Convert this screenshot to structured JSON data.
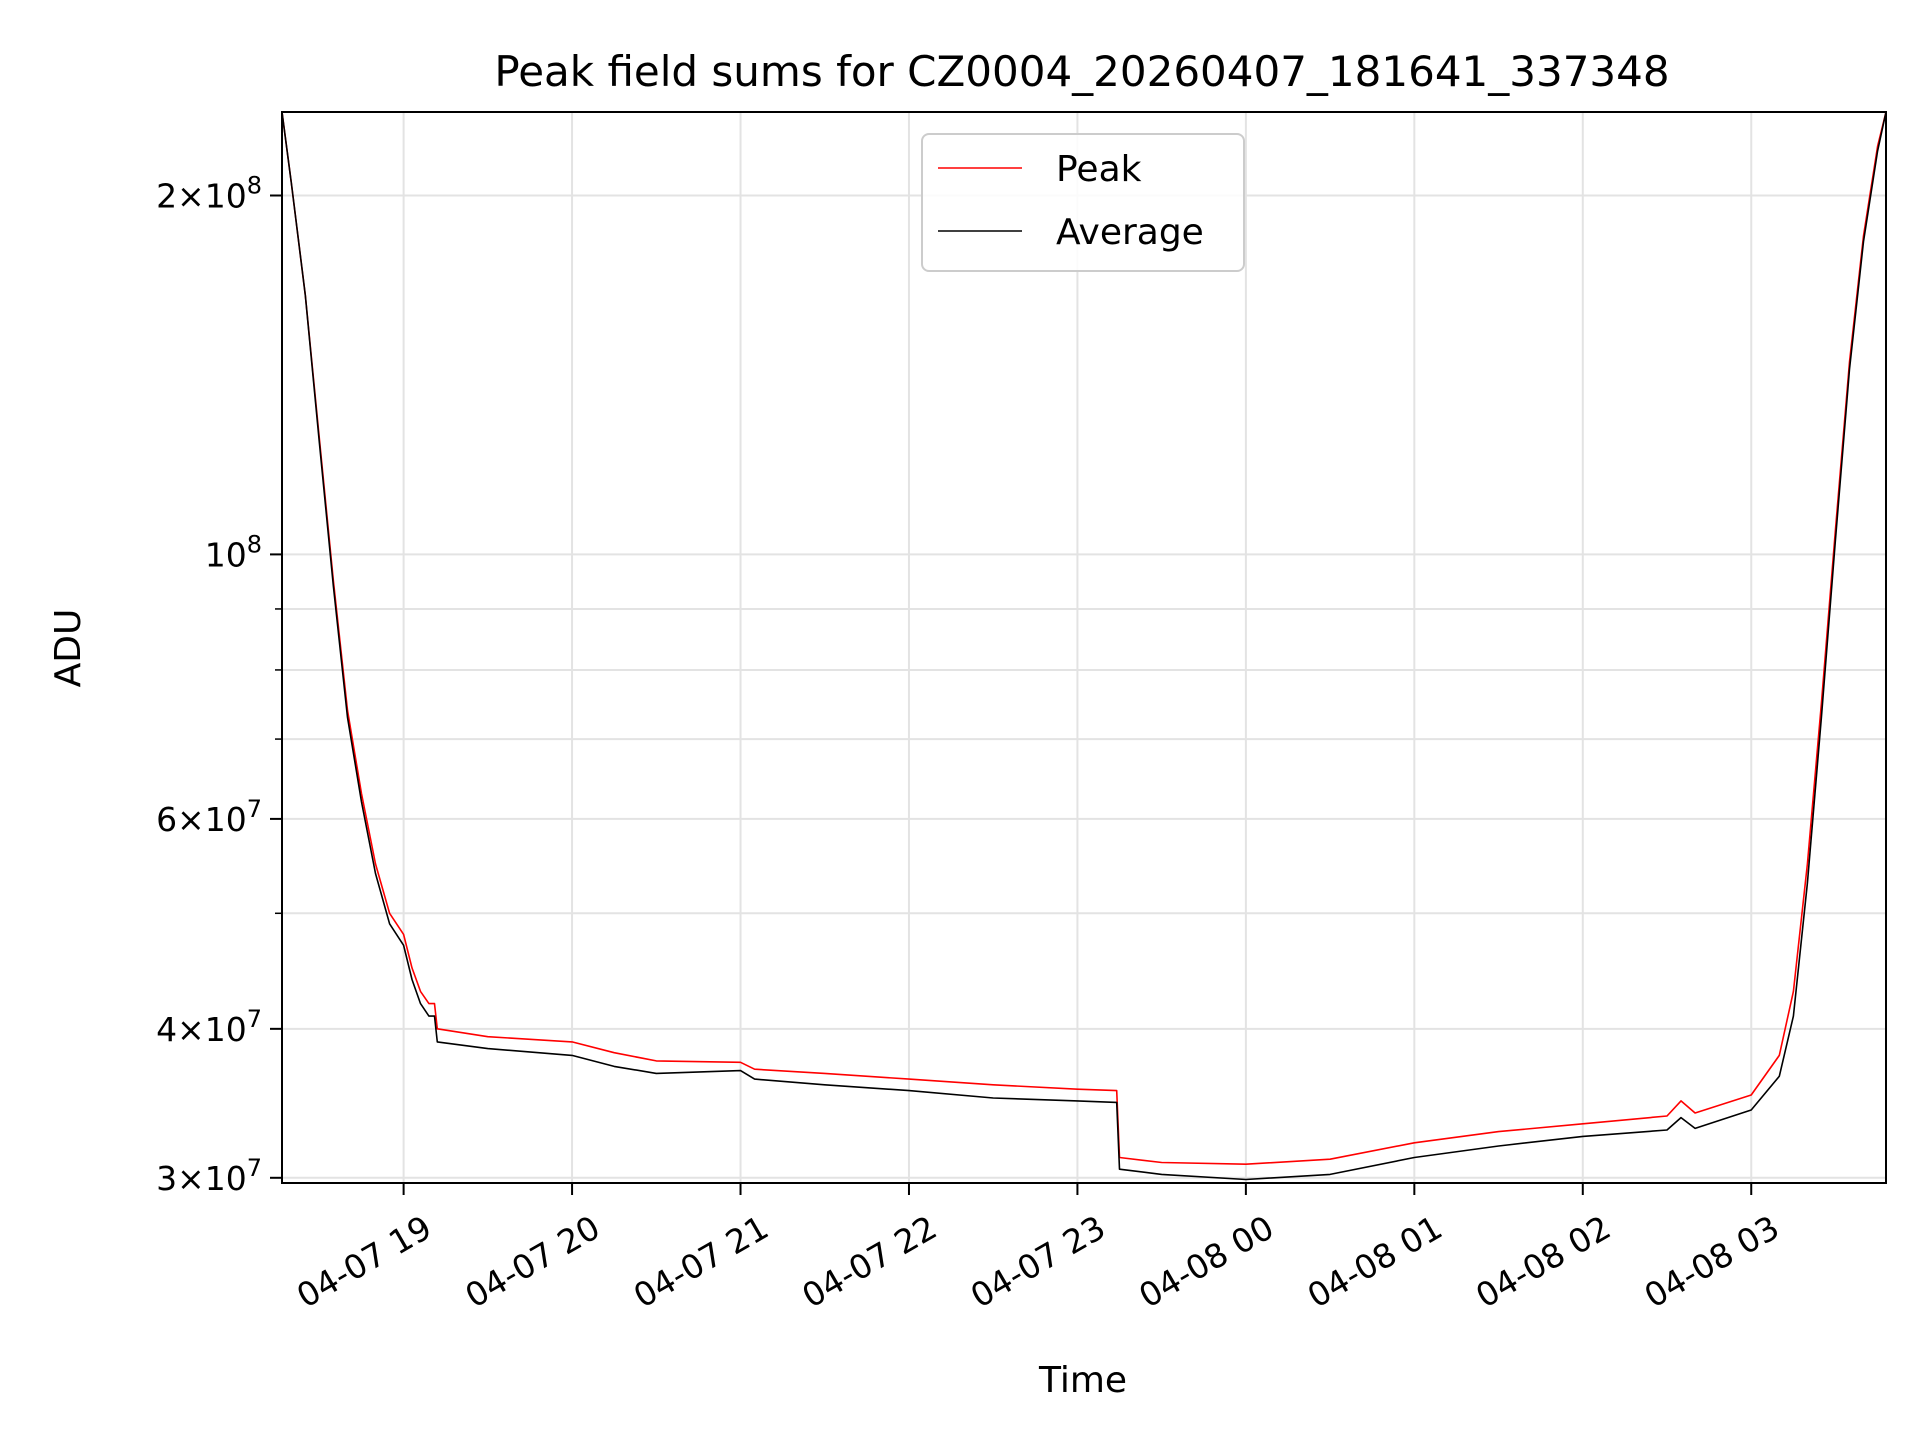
{
  "chart_data": {
    "type": "line",
    "title": "Peak field sums for CZ0004_20260407_181641_337348",
    "xlabel": "Time",
    "ylabel": "ADU",
    "y_scale": "log",
    "ylim": [
      29700000,
      235000000
    ],
    "xlim": [
      "2026-04-07 18:16:41",
      "2026-04-08 03:48:00"
    ],
    "grid": true,
    "legend_position": "upper center",
    "x_ticks": [
      {
        "t": "2026-04-07 19:00",
        "label": "04-07 19"
      },
      {
        "t": "2026-04-07 20:00",
        "label": "04-07 20"
      },
      {
        "t": "2026-04-07 21:00",
        "label": "04-07 21"
      },
      {
        "t": "2026-04-07 22:00",
        "label": "04-07 22"
      },
      {
        "t": "2026-04-07 23:00",
        "label": "04-07 23"
      },
      {
        "t": "2026-04-08 00:00",
        "label": "04-08 00"
      },
      {
        "t": "2026-04-08 01:00",
        "label": "04-08 01"
      },
      {
        "t": "2026-04-08 02:00",
        "label": "04-08 02"
      },
      {
        "t": "2026-04-08 03:00",
        "label": "04-08 03"
      }
    ],
    "y_ticks": [
      {
        "v": 30000000,
        "m": "3",
        "e": "7"
      },
      {
        "v": 40000000,
        "m": "4",
        "e": "7"
      },
      {
        "v": 60000000,
        "m": "6",
        "e": "7"
      },
      {
        "v": 100000000,
        "m": "",
        "e": "8"
      },
      {
        "v": 200000000,
        "m": "2",
        "e": "8"
      }
    ],
    "y_minor_ticks": [
      50000000,
      70000000,
      80000000,
      90000000
    ],
    "series": [
      {
        "name": "Peak",
        "color": "#ff0000",
        "points": [
          [
            "2026-04-07 18:16:41",
            235000000
          ],
          [
            "2026-04-07 18:20",
            205000000
          ],
          [
            "2026-04-07 18:25",
            165000000
          ],
          [
            "2026-04-07 18:30",
            125000000
          ],
          [
            "2026-04-07 18:35",
            95000000
          ],
          [
            "2026-04-07 18:40",
            74000000
          ],
          [
            "2026-04-07 18:45",
            63000000
          ],
          [
            "2026-04-07 18:50",
            55000000
          ],
          [
            "2026-04-07 18:55",
            50000000
          ],
          [
            "2026-04-07 19:00",
            48000000
          ],
          [
            "2026-04-07 19:03",
            45000000
          ],
          [
            "2026-04-07 19:06",
            43000000
          ],
          [
            "2026-04-07 19:09",
            42000000
          ],
          [
            "2026-04-07 19:11",
            42000000
          ],
          [
            "2026-04-07 19:12",
            40000000
          ],
          [
            "2026-04-07 19:30",
            39400000
          ],
          [
            "2026-04-07 20:00",
            39000000
          ],
          [
            "2026-04-07 20:15",
            38200000
          ],
          [
            "2026-04-07 20:30",
            37600000
          ],
          [
            "2026-04-07 21:00",
            37500000
          ],
          [
            "2026-04-07 21:05",
            37000000
          ],
          [
            "2026-04-07 21:30",
            36700000
          ],
          [
            "2026-04-07 22:00",
            36300000
          ],
          [
            "2026-04-07 22:30",
            35900000
          ],
          [
            "2026-04-07 23:00",
            35600000
          ],
          [
            "2026-04-07 23:14",
            35500000
          ],
          [
            "2026-04-07 23:15",
            31200000
          ],
          [
            "2026-04-07 23:30",
            30900000
          ],
          [
            "2026-04-08 00:00",
            30800000
          ],
          [
            "2026-04-08 00:30",
            31100000
          ],
          [
            "2026-04-08 01:00",
            32100000
          ],
          [
            "2026-04-08 01:30",
            32800000
          ],
          [
            "2026-04-08 02:00",
            33300000
          ],
          [
            "2026-04-08 02:30",
            33800000
          ],
          [
            "2026-04-08 02:35",
            34800000
          ],
          [
            "2026-04-08 02:40",
            34000000
          ],
          [
            "2026-04-08 03:00",
            35200000
          ],
          [
            "2026-04-08 03:10",
            38000000
          ],
          [
            "2026-04-08 03:15",
            43000000
          ],
          [
            "2026-04-08 03:20",
            55000000
          ],
          [
            "2026-04-08 03:25",
            75000000
          ],
          [
            "2026-04-08 03:30",
            105000000
          ],
          [
            "2026-04-08 03:35",
            145000000
          ],
          [
            "2026-04-08 03:40",
            185000000
          ],
          [
            "2026-04-08 03:45",
            220000000
          ],
          [
            "2026-04-08 03:48",
            235000000
          ]
        ]
      },
      {
        "name": "Average",
        "color": "#000000",
        "points": [
          [
            "2026-04-07 18:16:41",
            235000000
          ],
          [
            "2026-04-07 18:20",
            205000000
          ],
          [
            "2026-04-07 18:25",
            165000000
          ],
          [
            "2026-04-07 18:30",
            124000000
          ],
          [
            "2026-04-07 18:35",
            94000000
          ],
          [
            "2026-04-07 18:40",
            73000000
          ],
          [
            "2026-04-07 18:45",
            62000000
          ],
          [
            "2026-04-07 18:50",
            54000000
          ],
          [
            "2026-04-07 18:55",
            49000000
          ],
          [
            "2026-04-07 19:00",
            47000000
          ],
          [
            "2026-04-07 19:03",
            44000000
          ],
          [
            "2026-04-07 19:06",
            42000000
          ],
          [
            "2026-04-07 19:09",
            41000000
          ],
          [
            "2026-04-07 19:11",
            41000000
          ],
          [
            "2026-04-07 19:12",
            39000000
          ],
          [
            "2026-04-07 19:30",
            38500000
          ],
          [
            "2026-04-07 20:00",
            38000000
          ],
          [
            "2026-04-07 20:15",
            37200000
          ],
          [
            "2026-04-07 20:30",
            36700000
          ],
          [
            "2026-04-07 21:00",
            36900000
          ],
          [
            "2026-04-07 21:05",
            36300000
          ],
          [
            "2026-04-07 21:30",
            35900000
          ],
          [
            "2026-04-07 22:00",
            35500000
          ],
          [
            "2026-04-07 22:30",
            35000000
          ],
          [
            "2026-04-07 23:00",
            34800000
          ],
          [
            "2026-04-07 23:14",
            34700000
          ],
          [
            "2026-04-07 23:15",
            30500000
          ],
          [
            "2026-04-07 23:30",
            30200000
          ],
          [
            "2026-04-08 00:00",
            29900000
          ],
          [
            "2026-04-08 00:30",
            30200000
          ],
          [
            "2026-04-08 01:00",
            31200000
          ],
          [
            "2026-04-08 01:30",
            31900000
          ],
          [
            "2026-04-08 02:00",
            32500000
          ],
          [
            "2026-04-08 02:30",
            32900000
          ],
          [
            "2026-04-08 02:35",
            33700000
          ],
          [
            "2026-04-08 02:40",
            33000000
          ],
          [
            "2026-04-08 03:00",
            34200000
          ],
          [
            "2026-04-08 03:10",
            36500000
          ],
          [
            "2026-04-08 03:15",
            41000000
          ],
          [
            "2026-04-08 03:20",
            53000000
          ],
          [
            "2026-04-08 03:25",
            73000000
          ],
          [
            "2026-04-08 03:30",
            103000000
          ],
          [
            "2026-04-08 03:35",
            143000000
          ],
          [
            "2026-04-08 03:40",
            183000000
          ],
          [
            "2026-04-08 03:45",
            218000000
          ],
          [
            "2026-04-08 03:48",
            235000000
          ]
        ]
      }
    ]
  }
}
